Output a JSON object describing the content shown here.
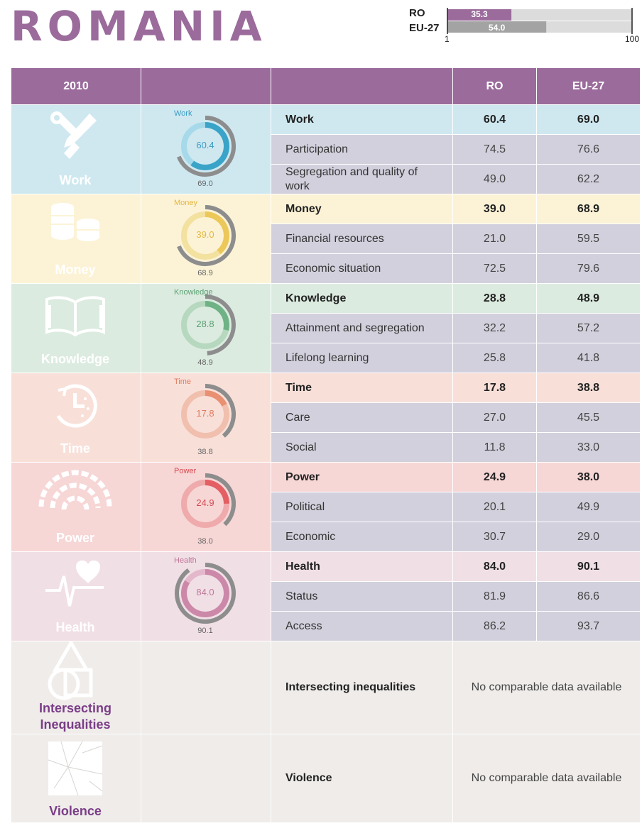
{
  "country": "ROMANIA",
  "colors": {
    "header": "#9b6b9c",
    "purple_text": "#7a3d87",
    "ro_bar": "#9b6b9c",
    "eu_bar": "#a3a3a3",
    "bar_track": "#dcdcdc",
    "row_gray": "#d3d0dd",
    "none_bg": "#efecea"
  },
  "summary": {
    "ro_label": "RO",
    "eu_label": "EU-27",
    "ro_value": "35.3",
    "eu_value": "54.0",
    "ro_num": 35.3,
    "eu_num": 54.0,
    "axis_min": "1",
    "axis_max": "100"
  },
  "header": {
    "year": "2010",
    "col_ro": "RO",
    "col_eu": "EU-27"
  },
  "domains": [
    {
      "key": "work",
      "name": "Work",
      "icon": "tools-icon",
      "bg": "#cfe8f0",
      "accent": "#3aa3c8",
      "light": "#a6d9e9",
      "text": "#3a9cc4",
      "score": "60.4",
      "eu": "69.0",
      "score_num": 60.4,
      "eu_num": 69.0,
      "rows": [
        {
          "label": "Work",
          "ro": "60.4",
          "eu": "69.0"
        },
        {
          "label": "Participation",
          "ro": "74.5",
          "eu": "76.6"
        },
        {
          "label": "Segregation and quality of work",
          "ro": "49.0",
          "eu": "62.2"
        }
      ]
    },
    {
      "key": "money",
      "name": "Money",
      "icon": "coins-icon",
      "bg": "#fcf3d7",
      "accent": "#ecc85a",
      "light": "#f3e1a0",
      "text": "#e4b740",
      "score": "39.0",
      "eu": "68.9",
      "score_num": 39.0,
      "eu_num": 68.9,
      "rows": [
        {
          "label": "Money",
          "ro": "39.0",
          "eu": "68.9"
        },
        {
          "label": "Financial resources",
          "ro": "21.0",
          "eu": "59.5"
        },
        {
          "label": "Economic situation",
          "ro": "72.5",
          "eu": "79.6"
        }
      ]
    },
    {
      "key": "knowledge",
      "name": "Knowledge",
      "icon": "book-icon",
      "bg": "#dcebe0",
      "accent": "#6fb285",
      "light": "#b6d8bf",
      "text": "#5aa072",
      "score": "28.8",
      "eu": "48.9",
      "score_num": 28.8,
      "eu_num": 48.9,
      "rows": [
        {
          "label": "Knowledge",
          "ro": "28.8",
          "eu": "48.9"
        },
        {
          "label": "Attainment and segregation",
          "ro": "32.2",
          "eu": "57.2"
        },
        {
          "label": "Lifelong learning",
          "ro": "25.8",
          "eu": "41.8"
        }
      ]
    },
    {
      "key": "time",
      "name": "Time",
      "icon": "clock-icon",
      "bg": "#f8e0d9",
      "accent": "#e98f72",
      "light": "#f1bfae",
      "text": "#e07a5c",
      "score": "17.8",
      "eu": "38.8",
      "score_num": 17.8,
      "eu_num": 38.8,
      "rows": [
        {
          "label": "Time",
          "ro": "17.8",
          "eu": "38.8"
        },
        {
          "label": "Care",
          "ro": "27.0",
          "eu": "45.5"
        },
        {
          "label": "Social",
          "ro": "11.8",
          "eu": "33.0"
        }
      ]
    },
    {
      "key": "power",
      "name": "Power",
      "icon": "power-arc-icon",
      "bg": "#f7d6d6",
      "accent": "#e35f64",
      "light": "#efaaab",
      "text": "#d64a50",
      "score": "24.9",
      "eu": "38.0",
      "score_num": 24.9,
      "eu_num": 38.0,
      "rows": [
        {
          "label": "Power",
          "ro": "24.9",
          "eu": "38.0"
        },
        {
          "label": "Political",
          "ro": "20.1",
          "eu": "49.9"
        },
        {
          "label": "Economic",
          "ro": "30.7",
          "eu": "29.0"
        }
      ]
    },
    {
      "key": "health",
      "name": "Health",
      "icon": "heartbeat-icon",
      "bg": "#f1dfe6",
      "accent": "#cc88a8",
      "light": "#e4b8cb",
      "text": "#c07898",
      "score": "84.0",
      "eu": "90.1",
      "score_num": 84.0,
      "eu_num": 90.1,
      "rows": [
        {
          "label": "Health",
          "ro": "84.0",
          "eu": "90.1"
        },
        {
          "label": "Status",
          "ro": "81.9",
          "eu": "86.6"
        },
        {
          "label": "Access",
          "ro": "86.2",
          "eu": "93.7"
        }
      ]
    }
  ],
  "extras": [
    {
      "key": "intersecting",
      "name_line1": "Intersecting",
      "name_line2": "Inequalities",
      "icon": "shapes-icon",
      "label": "Intersecting inequalities",
      "note": "No comparable data available"
    },
    {
      "key": "violence",
      "name_line1": "Violence",
      "name_line2": "",
      "icon": "cracked-glass-icon",
      "label": "Violence",
      "note": "No comparable data available"
    }
  ]
}
